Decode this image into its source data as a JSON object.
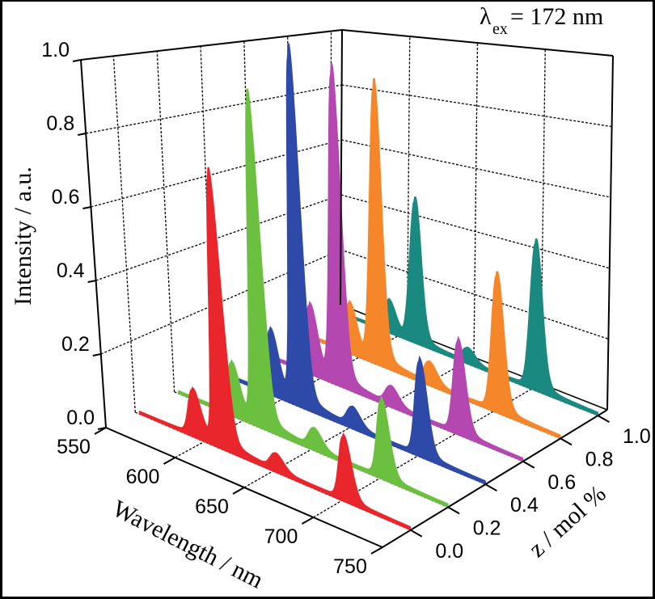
{
  "chart_data": {
    "type": "line",
    "subtype": "3d-waterfall-filled",
    "annotation": {
      "symbol": "λ",
      "subscript": "ex",
      "text": "= 172 nm"
    },
    "xlabel": "Wavelength / nm",
    "ylabel": "Intensity / a.u.",
    "zlabel": "z / mol %",
    "xlim": [
      550,
      750
    ],
    "ylim": [
      0.0,
      1.0
    ],
    "zlim": [
      -0.15,
      1.05
    ],
    "xticks": [
      "550",
      "600",
      "650",
      "700",
      "750"
    ],
    "yticks": [
      "0.0",
      "0.2",
      "0.4",
      "0.6",
      "0.8",
      "1.0"
    ],
    "zticks": [
      "0.0",
      "0.2",
      "0.4",
      "0.6",
      "0.8",
      "1.0"
    ],
    "grid": true,
    "peak_wavelengths": [
      593,
      612,
      652,
      702
    ],
    "series": [
      {
        "z": 0.0,
        "color": "#e8262b",
        "peaks": [
          0.12,
          0.72,
          0.04,
          0.16
        ]
      },
      {
        "z": 0.2,
        "color": "#6cc040",
        "peaks": [
          0.14,
          0.9,
          0.05,
          0.2
        ]
      },
      {
        "z": 0.4,
        "color": "#2e4aa8",
        "peaks": [
          0.18,
          1.0,
          0.05,
          0.25
        ]
      },
      {
        "z": 0.6,
        "color": "#b548b0",
        "peaks": [
          0.2,
          0.92,
          0.05,
          0.25
        ]
      },
      {
        "z": 0.8,
        "color": "#f5862a",
        "peaks": [
          0.15,
          0.85,
          0.06,
          0.38
        ]
      },
      {
        "z": 1.0,
        "color": "#1a8a80",
        "peaks": [
          0.1,
          0.45,
          0.04,
          0.42
        ]
      }
    ]
  }
}
